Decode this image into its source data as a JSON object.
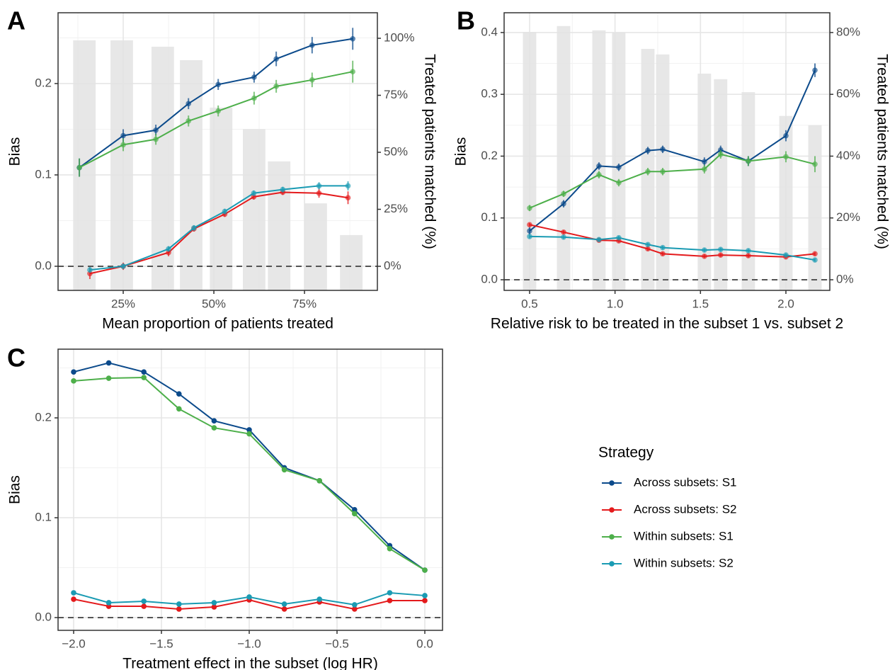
{
  "chart_data": [
    {
      "type": "line",
      "panel_label": "A",
      "x_label": "Mean proportion of patients treated",
      "y_label": "Bias",
      "y2_label": "Treated patients matched (%)",
      "xlim": [
        7.03,
        95.1
      ],
      "xticks": [
        {
          "value": 25,
          "label": "25%"
        },
        {
          "value": 50,
          "label": "50%"
        },
        {
          "value": 75,
          "label": "75%"
        }
      ],
      "ylim": [
        -0.0264,
        0.2775
      ],
      "yticks": [
        {
          "value": 0,
          "label": "0.0"
        },
        0.1,
        0.2
      ],
      "y2lim": [
        -10.56,
        111.2
      ],
      "y2ticks": [
        {
          "value": 0,
          "label": "0%"
        },
        {
          "value": 25,
          "label": "25%"
        },
        {
          "value": 50,
          "label": "50%"
        },
        {
          "value": 75,
          "label": "75%"
        },
        {
          "value": 100,
          "label": "100%"
        }
      ],
      "grid": true,
      "hline": 0,
      "bars": {
        "axis": "y2",
        "color": "#e3e3e3",
        "x": [
          14.3,
          24.6,
          35.9,
          43.75,
          52,
          61.1,
          68,
          78.1,
          87.9
        ],
        "values": [
          99.1,
          99.1,
          96.3,
          90.4,
          69.6,
          60.2,
          46,
          27.6,
          13.7
        ]
      },
      "series": [
        {
          "color": "#0b4a8b",
          "x": [
            12.9,
            25,
            34,
            43,
            51.2,
            61.1,
            67.2,
            77.1,
            88.3
          ],
          "values": [
            0.108,
            0.143,
            0.149,
            0.178,
            0.199,
            0.207,
            0.227,
            0.242,
            0.249
          ],
          "errors": [
            0.01,
            0.007,
            0.006,
            0.006,
            0.006,
            0.006,
            0.008,
            0.009,
            0.012
          ]
        },
        {
          "color": "#e41a1c",
          "x": [
            15.8,
            25,
            37.5,
            44.5,
            53,
            61,
            69,
            79,
            87
          ],
          "values": [
            -0.008,
            0.0,
            0.015,
            0.041,
            0.057,
            0.076,
            0.081,
            0.08,
            0.075
          ],
          "errors": [
            0.006,
            0.004,
            0.004,
            0.003,
            0.003,
            0.003,
            0.003,
            0.005,
            0.007
          ]
        },
        {
          "color": "#4daf4a",
          "x": [
            12.9,
            25,
            34,
            43,
            51.2,
            61.1,
            67.2,
            77.1,
            88.3
          ],
          "values": [
            0.108,
            0.133,
            0.139,
            0.159,
            0.17,
            0.184,
            0.197,
            0.204,
            0.213
          ],
          "errors": [
            0.01,
            0.007,
            0.006,
            0.006,
            0.006,
            0.007,
            0.007,
            0.008,
            0.012
          ]
        },
        {
          "color": "#1a9bb3",
          "x": [
            15.8,
            25,
            37.5,
            44.5,
            53,
            61,
            69,
            79,
            87
          ],
          "values": [
            -0.004,
            0.0,
            0.019,
            0.042,
            0.06,
            0.08,
            0.084,
            0.088,
            0.088
          ],
          "errors": [
            0.003,
            0.003,
            0.003,
            0.003,
            0.003,
            0.003,
            0.003,
            0.004,
            0.005
          ]
        }
      ]
    },
    {
      "type": "line",
      "panel_label": "B",
      "x_label": "Relative risk to be treated in the subset 1 vs. subset 2",
      "y_label": "Bias",
      "y2_label": "Treated patients matched (%)",
      "xlim": [
        0.351,
        2.257
      ],
      "xticks": [
        0.5,
        {
          "value": 1,
          "label": "1.0"
        },
        1.5,
        {
          "value": 2,
          "label": "2.0"
        }
      ],
      "ylim": [
        -0.0172,
        0.432
      ],
      "yticks": [
        {
          "value": 0,
          "label": "0.0"
        },
        0.1,
        0.2,
        0.3,
        0.4
      ],
      "y2lim": [
        -3.44,
        86.4
      ],
      "y2ticks": [
        {
          "value": 0,
          "label": "0%"
        },
        {
          "value": 20,
          "label": "20%"
        },
        {
          "value": 40,
          "label": "40%"
        },
        {
          "value": 60,
          "label": "60%"
        },
        {
          "value": 80,
          "label": "80%"
        }
      ],
      "grid": true,
      "hline": 0,
      "bars": {
        "axis": "y2",
        "color": "#e3e3e3",
        "x": [
          0.5,
          0.699,
          0.906,
          1.022,
          1.192,
          1.279,
          1.523,
          1.618,
          1.78,
          2.0,
          2.17
        ],
        "values": [
          80.2,
          82.1,
          80.7,
          80,
          74.7,
          72.9,
          66.7,
          64.9,
          60.7,
          53,
          50
        ]
      },
      "series": [
        {
          "color": "#0b4a8b",
          "x": [
            0.5,
            0.699,
            0.906,
            1.022,
            1.192,
            1.279,
            1.523,
            1.618,
            1.78,
            2.0,
            2.17
          ],
          "values": [
            0.079,
            0.123,
            0.184,
            0.182,
            0.209,
            0.211,
            0.191,
            0.21,
            0.192,
            0.233,
            0.339
          ],
          "errors": [
            0.006,
            0.006,
            0.006,
            0.006,
            0.006,
            0.006,
            0.007,
            0.007,
            0.008,
            0.009,
            0.011
          ]
        },
        {
          "color": "#e41a1c",
          "x": [
            0.5,
            0.699,
            0.906,
            1.022,
            1.192,
            1.279,
            1.523,
            1.618,
            1.78,
            2.0,
            2.17
          ],
          "values": [
            0.089,
            0.077,
            0.064,
            0.063,
            0.05,
            0.042,
            0.038,
            0.04,
            0.039,
            0.037,
            0.042
          ],
          "errors": [
            0.003,
            0.003,
            0.003,
            0.003,
            0.003,
            0.003,
            0.003,
            0.003,
            0.003,
            0.003,
            0.003
          ]
        },
        {
          "color": "#4daf4a",
          "x": [
            0.5,
            0.699,
            0.906,
            1.022,
            1.192,
            1.279,
            1.523,
            1.618,
            1.78,
            2.0,
            2.17
          ],
          "values": [
            0.116,
            0.139,
            0.17,
            0.157,
            0.175,
            0.175,
            0.179,
            0.203,
            0.192,
            0.199,
            0.187
          ],
          "errors": [
            0.005,
            0.005,
            0.006,
            0.006,
            0.006,
            0.006,
            0.007,
            0.007,
            0.008,
            0.009,
            0.013
          ]
        },
        {
          "color": "#1a9bb3",
          "x": [
            0.5,
            0.699,
            0.906,
            1.022,
            1.192,
            1.279,
            1.523,
            1.618,
            1.78,
            2.0,
            2.17
          ],
          "values": [
            0.07,
            0.069,
            0.065,
            0.068,
            0.057,
            0.052,
            0.048,
            0.049,
            0.047,
            0.04,
            0.032
          ],
          "errors": [
            0.003,
            0.003,
            0.003,
            0.003,
            0.003,
            0.003,
            0.003,
            0.003,
            0.003,
            0.003,
            0.003
          ]
        }
      ]
    },
    {
      "type": "line",
      "panel_label": "C",
      "x_label": "Treatment effect in the subset (log HR)",
      "y_label": "Bias",
      "legend_title": "Strategy",
      "xlim": [
        -2.0887,
        0.1008
      ],
      "xticks": [
        {
          "value": -2,
          "label": "−2.0"
        },
        {
          "value": -1.5,
          "label": "−1.5"
        },
        {
          "value": -1,
          "label": "−1.0"
        },
        {
          "value": -0.5,
          "label": "−0.5"
        },
        {
          "value": 0,
          "label": "0.0"
        }
      ],
      "ylim": [
        -0.0128,
        0.2688
      ],
      "yticks": [
        {
          "value": 0,
          "label": "0.0"
        },
        0.1,
        0.2
      ],
      "grid": true,
      "hline": 0,
      "series": [
        {
          "name": "Across subsets: S1",
          "color": "#0b4a8b",
          "x": [
            -2,
            -1.8,
            -1.6,
            -1.4,
            -1.2,
            -1,
            -0.8,
            -0.6,
            -0.4,
            -0.2,
            0
          ],
          "values": [
            0.246,
            0.255,
            0.246,
            0.224,
            0.197,
            0.188,
            0.15,
            0.137,
            0.108,
            0.072,
            0.0475
          ]
        },
        {
          "name": "Across subsets: S2",
          "color": "#e41a1c",
          "x": [
            -2,
            -1.8,
            -1.6,
            -1.4,
            -1.2,
            -1,
            -0.8,
            -0.6,
            -0.4,
            -0.2,
            0
          ],
          "values": [
            0.0184,
            0.0113,
            0.0113,
            0.0085,
            0.0106,
            0.0177,
            0.0085,
            0.0156,
            0.0085,
            0.017,
            0.017
          ]
        },
        {
          "name": "Within subsets: S1",
          "color": "#4daf4a",
          "x": [
            -2,
            -1.8,
            -1.6,
            -1.4,
            -1.2,
            -1,
            -0.8,
            -0.6,
            -0.4,
            -0.2,
            0
          ],
          "values": [
            0.237,
            0.2397,
            0.2404,
            0.209,
            0.19,
            0.184,
            0.148,
            0.137,
            0.104,
            0.069,
            0.0475
          ]
        },
        {
          "name": "Within subsets: S2",
          "color": "#1a9bb3",
          "x": [
            -2,
            -1.8,
            -1.6,
            -1.4,
            -1.2,
            -1,
            -0.8,
            -0.6,
            -0.4,
            -0.2,
            0
          ],
          "values": [
            0.0248,
            0.0149,
            0.0163,
            0.0135,
            0.0149,
            0.0206,
            0.0135,
            0.0184,
            0.0128,
            0.0248,
            0.022
          ]
        }
      ]
    }
  ]
}
